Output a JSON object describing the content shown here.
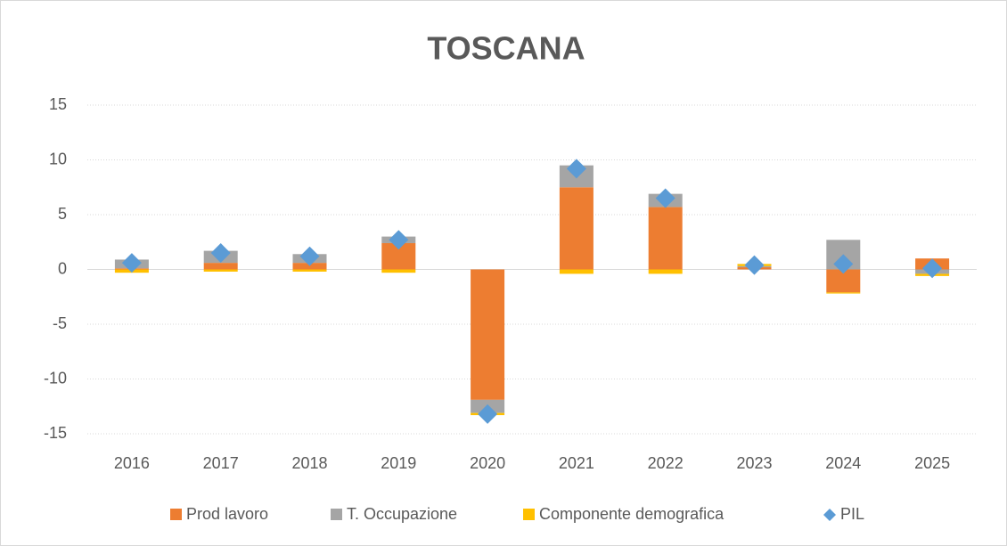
{
  "chart_data": {
    "type": "bar",
    "stacked": true,
    "title": "TOSCANA",
    "categories": [
      "2016",
      "2017",
      "2018",
      "2019",
      "2020",
      "2021",
      "2022",
      "2023",
      "2024",
      "2025"
    ],
    "series": [
      {
        "name": "Prod lavoro",
        "color": "#ed7d31",
        "values": [
          0.1,
          0.6,
          0.6,
          2.4,
          -11.9,
          7.5,
          5.7,
          0.2,
          -2.1,
          1.0
        ]
      },
      {
        "name": "T. Occupazione",
        "color": "#a5a5a5",
        "values": [
          0.8,
          1.1,
          0.8,
          0.6,
          -1.2,
          2.0,
          1.2,
          0.1,
          2.7,
          -0.4
        ]
      },
      {
        "name": "Componente demografica",
        "color": "#ffc000",
        "values": [
          -0.3,
          -0.2,
          -0.2,
          -0.3,
          -0.2,
          -0.4,
          -0.4,
          0.2,
          -0.1,
          -0.2
        ]
      },
      {
        "name": "PIL",
        "color": "#5b9bd5",
        "type": "scatter",
        "values": [
          0.6,
          1.5,
          1.2,
          2.7,
          -13.2,
          9.2,
          6.5,
          0.4,
          0.5,
          0.1
        ]
      }
    ],
    "ylim": [
      -15,
      15
    ],
    "yticks": [
      -15,
      -10,
      -5,
      0,
      5,
      10,
      15
    ],
    "grid": true,
    "legend": "bottom"
  }
}
